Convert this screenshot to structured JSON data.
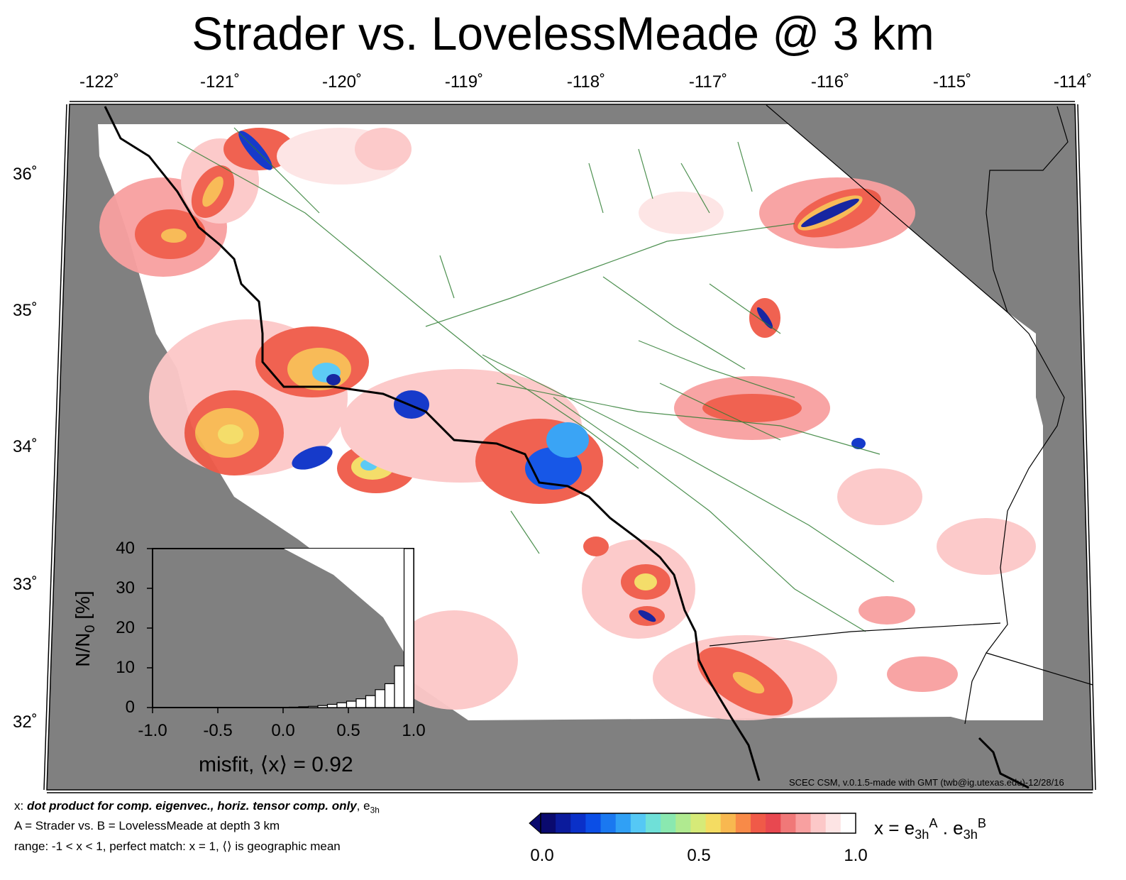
{
  "title": "Strader vs. LovelessMeade @ 3 km",
  "map": {
    "lon_ticks": [
      "-122˚",
      "-121˚",
      "-120˚",
      "-119˚",
      "-118˚",
      "-117˚",
      "-116˚",
      "-115˚",
      "-114˚"
    ],
    "lat_ticks": [
      "36˚",
      "35˚",
      "34˚",
      "33˚",
      "32˚"
    ],
    "credit": "SCEC CSM, v.0.1.5-made with GMT (twb@ig.utexas.edu)-12/28/16",
    "colors": {
      "land_outside": "#808080",
      "faults": "#2e7d32",
      "coast": "#000000",
      "background": "#ffffff"
    }
  },
  "histogram": {
    "ylabel": "N/N0 [%]",
    "xticks": [
      "-1.0",
      "-0.5",
      "0.0",
      "0.5",
      "1.0"
    ],
    "yticks": [
      "40",
      "30",
      "20",
      "10",
      "0"
    ],
    "bin_values": [
      0.1,
      0.2,
      0.3,
      0.5,
      0.8,
      1.2,
      1.6,
      2.2,
      3.0,
      4.5,
      6.0,
      10.5,
      40
    ],
    "misfit_label": "misfit, ⟨x⟩ = 0.92"
  },
  "footer": {
    "line1_prefix": "x: ",
    "line1_bold": "dot product for comp. eigenvec., horiz. tensor comp. only",
    "line1_suffix": ", e",
    "line1_sub": "3h",
    "line2": "A = Strader vs.  B = LovelessMeade at depth 3 km",
    "line3": "range: -1 < x < 1, perfect match: x = 1, ⟨⟩ is geographic mean"
  },
  "colorbar": {
    "ticks": [
      "0.0",
      "0.5",
      "1.0"
    ],
    "colors": [
      "#0a0a6e",
      "#0b1b9c",
      "#0a30c8",
      "#0b4ee6",
      "#1a78f0",
      "#30a0f5",
      "#55c8f5",
      "#6fe0d8",
      "#8ae8b0",
      "#b0ea90",
      "#d6ea78",
      "#f4dc62",
      "#f8b850",
      "#f88a48",
      "#f05a48",
      "#e84850",
      "#f07878",
      "#f8a0a0",
      "#fcc8c8",
      "#fde4e4",
      "#ffffff"
    ],
    "label_main": "x = e",
    "label_sub1": "3h",
    "label_sup1": "A",
    "label_dot": " . e",
    "label_sub2": "3h",
    "label_sup2": "B"
  }
}
